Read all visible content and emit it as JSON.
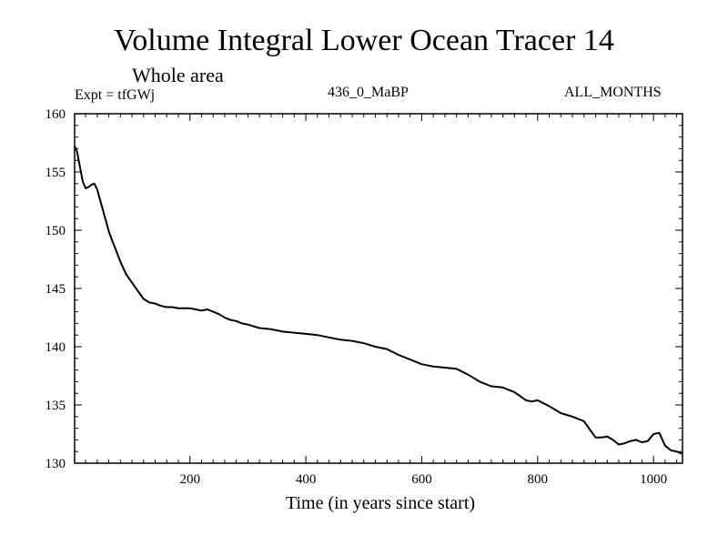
{
  "chart_data": {
    "type": "line",
    "title": "Volume Integral Lower Ocean Tracer 14",
    "subtitle": "Whole area",
    "expt_label": "Expt = tfGWj",
    "run_label": "436_0_MaBP",
    "months_label": "ALL_MONTHS",
    "xlabel": "Time (in years since start)",
    "ylabel": "",
    "xlim": [
      1,
      1050
    ],
    "ylim": [
      130,
      160
    ],
    "x_ticks": [
      200,
      400,
      600,
      800,
      1000
    ],
    "y_ticks": [
      130,
      135,
      140,
      145,
      150,
      155,
      160
    ],
    "series": [
      {
        "name": "Tracer 14",
        "color": "#000000",
        "x": [
          1,
          5,
          10,
          15,
          20,
          25,
          30,
          35,
          40,
          45,
          50,
          55,
          60,
          65,
          70,
          80,
          90,
          100,
          110,
          120,
          130,
          140,
          150,
          160,
          170,
          180,
          190,
          200,
          210,
          220,
          230,
          240,
          250,
          260,
          270,
          280,
          290,
          300,
          320,
          340,
          360,
          380,
          400,
          420,
          440,
          460,
          480,
          500,
          520,
          540,
          560,
          580,
          600,
          620,
          640,
          660,
          680,
          700,
          720,
          740,
          760,
          780,
          790,
          800,
          820,
          840,
          860,
          880,
          890,
          900,
          910,
          920,
          930,
          940,
          950,
          960,
          970,
          980,
          990,
          1000,
          1010,
          1020,
          1030,
          1040,
          1050
        ],
        "values": [
          157.2,
          156.8,
          155.5,
          154.2,
          153.6,
          153.7,
          153.9,
          154.0,
          153.5,
          152.6,
          151.7,
          150.8,
          149.9,
          149.2,
          148.6,
          147.3,
          146.2,
          145.5,
          144.8,
          144.1,
          143.8,
          143.7,
          143.5,
          143.4,
          143.4,
          143.3,
          143.3,
          143.3,
          143.2,
          143.1,
          143.2,
          143.0,
          142.8,
          142.5,
          142.3,
          142.2,
          142.0,
          141.9,
          141.6,
          141.5,
          141.3,
          141.2,
          141.1,
          141.0,
          140.8,
          140.6,
          140.5,
          140.3,
          140.0,
          139.8,
          139.3,
          138.9,
          138.5,
          138.3,
          138.2,
          138.1,
          137.6,
          137.0,
          136.6,
          136.5,
          136.1,
          135.4,
          135.3,
          135.4,
          134.9,
          134.3,
          134.0,
          133.6,
          132.9,
          132.2,
          132.2,
          132.3,
          132.0,
          131.6,
          131.7,
          131.9,
          132.0,
          131.8,
          131.9,
          132.5,
          132.6,
          131.5,
          131.1,
          131.0,
          130.8
        ]
      }
    ]
  }
}
